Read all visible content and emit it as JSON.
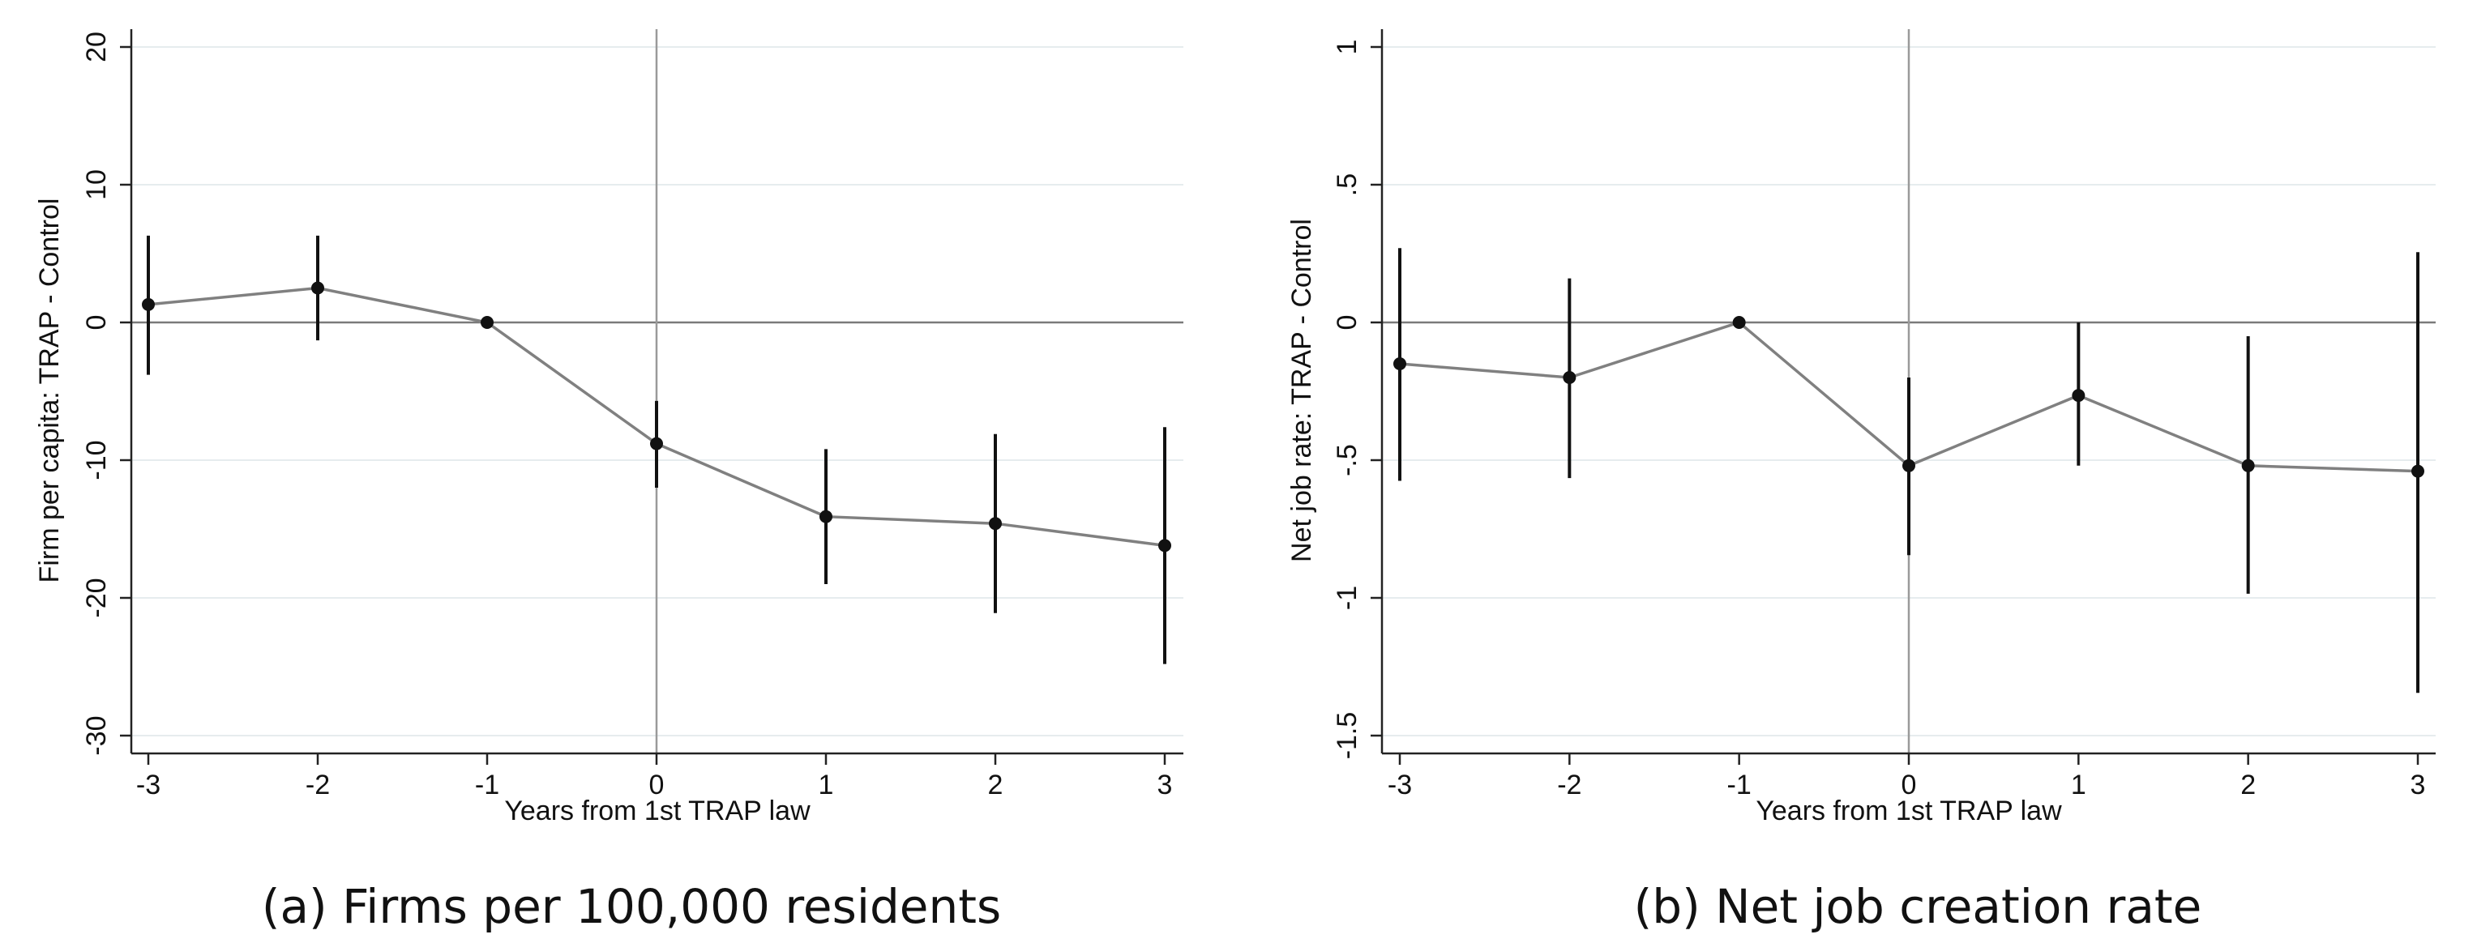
{
  "chart_data": [
    {
      "type": "line",
      "caption": "(a) Firms per 100,000 residents",
      "xlabel": "Years from 1st TRAP law",
      "ylabel": "Firm per capita: TRAP - Control",
      "xlim": [
        -3,
        3
      ],
      "ylim": [
        -30,
        20
      ],
      "xticks": [
        -3,
        -2,
        -1,
        0,
        1,
        2,
        3
      ],
      "xtick_labels": [
        "-3",
        "-2",
        "-1",
        "0",
        "1",
        "2",
        "3"
      ],
      "yticks": [
        -30,
        -20,
        -10,
        0,
        10,
        20
      ],
      "ytick_labels": [
        "-30",
        "-20",
        "-10",
        "0",
        "10",
        "20"
      ],
      "grid": "horizontal",
      "reference_lines": {
        "y": 0,
        "x": 0
      },
      "series": [
        {
          "x": [
            -3,
            -2,
            -1,
            0,
            1,
            2,
            3
          ],
          "y": [
            1.3,
            2.5,
            0,
            -8.8,
            -14.1,
            -14.6,
            -16.2
          ],
          "ci_low": [
            -3.8,
            -1.3,
            0,
            -12.0,
            -19.0,
            -21.1,
            -24.8
          ],
          "ci_high": [
            6.3,
            6.3,
            0,
            -5.7,
            -9.2,
            -8.1,
            -7.6
          ]
        }
      ]
    },
    {
      "type": "line",
      "caption": "(b) Net job creation rate",
      "xlabel": "Years from 1st TRAP law",
      "ylabel": "Net job rate: TRAP - Control",
      "xlim": [
        -3,
        3
      ],
      "ylim": [
        -1.5,
        1
      ],
      "xticks": [
        -3,
        -2,
        -1,
        0,
        1,
        2,
        3
      ],
      "xtick_labels": [
        "-3",
        "-2",
        "-1",
        "0",
        "1",
        "2",
        "3"
      ],
      "yticks": [
        -1.5,
        -1,
        -0.5,
        0,
        0.5,
        1
      ],
      "ytick_labels": [
        "-1.5",
        "-1",
        "-.5",
        "0",
        ".5",
        "1"
      ],
      "grid": "horizontal",
      "reference_lines": {
        "y": 0,
        "x": 0
      },
      "series": [
        {
          "x": [
            -3,
            -2,
            -1,
            0,
            1,
            2,
            3
          ],
          "y": [
            -0.15,
            -0.2,
            0,
            -0.52,
            -0.265,
            -0.52,
            -0.54
          ],
          "ci_low": [
            -0.575,
            -0.565,
            0,
            -0.845,
            -0.52,
            -0.985,
            -1.345
          ],
          "ci_high": [
            0.27,
            0.16,
            0,
            -0.2,
            0,
            -0.05,
            0.255
          ]
        }
      ]
    }
  ]
}
